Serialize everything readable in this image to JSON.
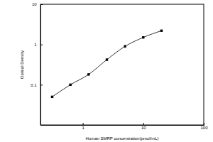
{
  "chart_data": {
    "type": "line",
    "x_label": "Human SMRP concentration(pmol/mL)",
    "y_label": "Optical Density",
    "x": [
      0.312,
      0.625,
      1.25,
      2.5,
      5,
      10,
      20
    ],
    "values": [
      0.05,
      0.1,
      0.18,
      0.42,
      0.9,
      1.5,
      2.2
    ],
    "color": "#000000",
    "marker": "square",
    "line_style": "solid",
    "log": true,
    "grid": false,
    "xlim": [
      0.2,
      100
    ],
    "xticks": [
      1,
      10,
      100
    ],
    "ylim": [
      0.01,
      10
    ],
    "yticks": [
      0.1,
      1,
      10
    ]
  }
}
